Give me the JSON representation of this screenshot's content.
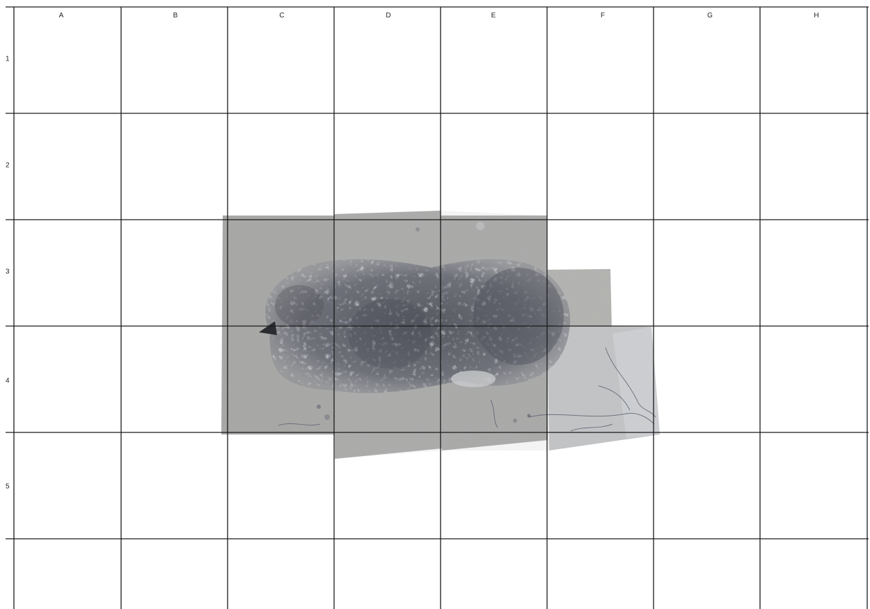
{
  "grid": {
    "columns": [
      "A",
      "B",
      "C",
      "D",
      "E",
      "F",
      "G",
      "H"
    ],
    "rows": [
      "1",
      "2",
      "3",
      "4",
      "5",
      ""
    ]
  },
  "photo": {
    "icon": "excavation-photo-mosaic",
    "colors": {
      "ground": "#a9a9a6",
      "ground_light": "#c4c4c0",
      "rubble": "#6f717a",
      "rubble_dark": "#4a4c55",
      "line": "#1a1a1a"
    }
  }
}
